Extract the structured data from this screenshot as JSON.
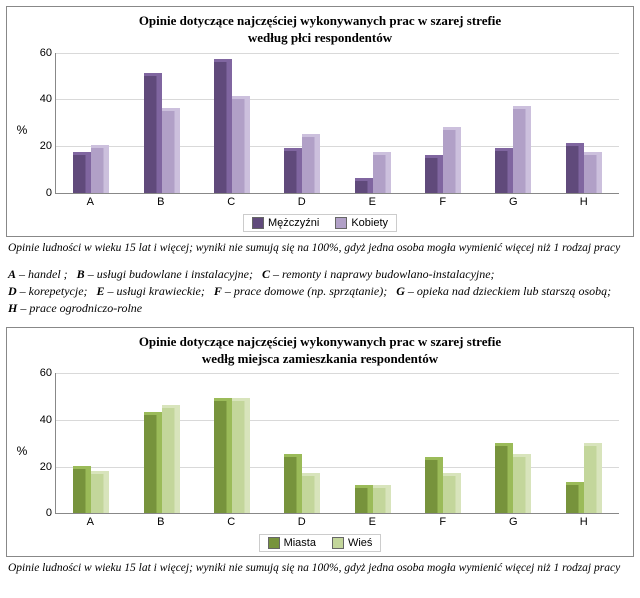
{
  "chart1": {
    "type": "bar",
    "title_line1": "Opinie dotyczące najczęściej wykonywanych prac w szarej strefie",
    "title_line2": "według płci respondentów",
    "y_label": "%",
    "ylim_max": 60,
    "ytick_step": 20,
    "categories": [
      "A",
      "B",
      "C",
      "D",
      "E",
      "F",
      "G",
      "H"
    ],
    "series": [
      {
        "name": "Mężczyźni",
        "color": "#604a7b",
        "color_side": "#8066a0",
        "values": [
          16,
          50,
          56,
          18,
          5,
          15,
          18,
          20
        ]
      },
      {
        "name": "Kobiety",
        "color": "#b1a0c7",
        "color_side": "#ccc0dd",
        "values": [
          19,
          35,
          40,
          24,
          16,
          27,
          36,
          16
        ]
      }
    ],
    "grid_color": "#d9d9d9",
    "title_fontsize": 13,
    "tick_fontsize": 11
  },
  "footnote1": "Opinie ludności w wieku 15 lat i więcej; wyniki nie sumują się na 100%, gdyż jedna osoba mogła wymienić więcej niż 1 rodzaj pracy",
  "legend_keys": [
    {
      "key": "A",
      "text": "handel ;"
    },
    {
      "key": "B",
      "text": "usługi budowlane i instalacyjne;"
    },
    {
      "key": "C",
      "text": "remonty i naprawy budowlano-instalacyjne;"
    },
    {
      "key": "D",
      "text": "korepetycje;"
    },
    {
      "key": "E",
      "text": "usługi krawieckie;"
    },
    {
      "key": "F",
      "text": "prace domowe (np. sprzątanie);"
    },
    {
      "key": "G",
      "text": "opieka nad dzieckiem lub starszą osobą;"
    },
    {
      "key": "H",
      "text": "prace ogrodniczo-rolne"
    }
  ],
  "chart2": {
    "type": "bar",
    "title_line1": "Opinie dotyczące najczęściej wykonywanych prac w szarej strefie",
    "title_line2": "wedłg miejsca zamieszkania respondentów",
    "y_label": "%",
    "ylim_max": 60,
    "ytick_step": 20,
    "categories": [
      "A",
      "B",
      "C",
      "D",
      "E",
      "F",
      "G",
      "H"
    ],
    "series": [
      {
        "name": "Miasta",
        "color": "#77933c",
        "color_side": "#9bbb59",
        "values": [
          19,
          42,
          48,
          24,
          11,
          23,
          29,
          12
        ]
      },
      {
        "name": "Wieś",
        "color": "#c3d69b",
        "color_side": "#d8e4bc",
        "values": [
          17,
          45,
          48,
          16,
          11,
          16,
          24,
          29
        ]
      }
    ],
    "grid_color": "#d9d9d9",
    "title_fontsize": 13,
    "tick_fontsize": 11
  },
  "footnote2": "Opinie ludności w wieku 15 lat i więcej; wyniki nie sumują się na 100%, gdyż jedna osoba mogła wymienić więcej niż 1 rodzaj pracy"
}
